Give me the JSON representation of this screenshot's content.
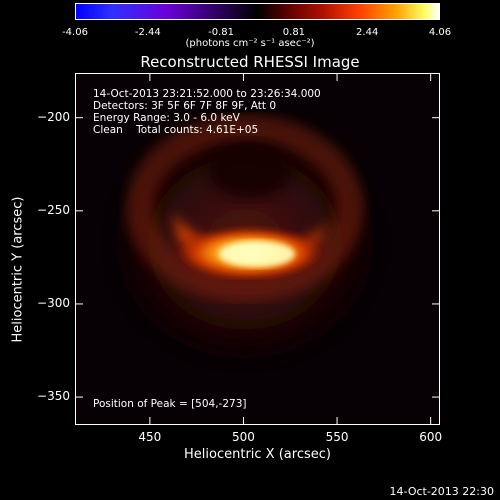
{
  "colorbar": {
    "ticks": [
      "-4.06",
      "-2.44",
      "-0.81",
      "0.81",
      "2.44",
      "4.06"
    ],
    "unit_label": "(photons cm⁻² s⁻¹ asec⁻²)"
  },
  "chart_data": {
    "type": "heatmap",
    "title": "Reconstructed RHESSI Image",
    "xlabel": "Heliocentric X (arcsec)",
    "ylabel": "Heliocentric Y (arcsec)",
    "xlim": [
      410,
      605
    ],
    "ylim": [
      -365,
      -176
    ],
    "x_ticks": [
      "450",
      "500",
      "550",
      "600"
    ],
    "y_ticks": [
      "-200",
      "-250",
      "-300",
      "-350"
    ],
    "colorscale_range": [
      -4.06,
      4.06
    ],
    "peak": {
      "x": 504,
      "y": -273,
      "value": 4.06
    },
    "annotations": {
      "time_range": "14-Oct-2013 23:21:52.000 to 23:26:34.000",
      "detectors": "Detectors: 3F 5F 6F 7F 8F 9F, Att 0",
      "energy": "Energy Range: 3.0 - 6.0 keV",
      "clean": "Clean    Total counts: 4.61E+05",
      "peak_text": "Position of Peak = [504,-273]"
    }
  },
  "footer": {
    "timestamp": "14-Oct-2013 22:30"
  }
}
